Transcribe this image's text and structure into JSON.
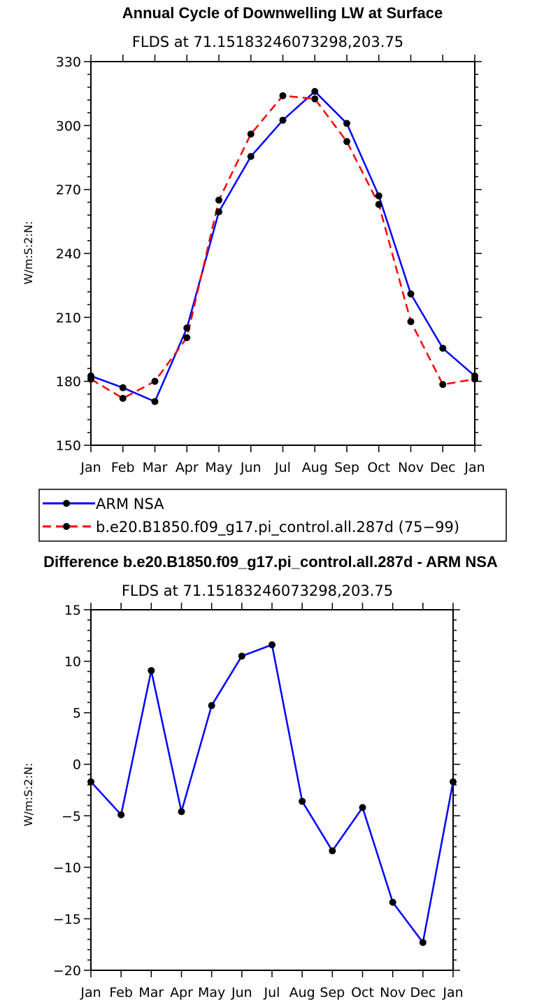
{
  "chart_data": [
    {
      "type": "line",
      "title": "Annual Cycle of Downwelling LW at Surface",
      "subtitle": "FLDS at 71.15183246073298,203.75",
      "xlabel": "",
      "ylabel": "W/m:S:2:N:",
      "categories": [
        "Jan",
        "Feb",
        "Mar",
        "Apr",
        "May",
        "Jun",
        "Jul",
        "Aug",
        "Sep",
        "Oct",
        "Nov",
        "Dec",
        "Jan"
      ],
      "ylim": [
        150,
        330
      ],
      "yticks": [
        150,
        180,
        210,
        240,
        270,
        300,
        330
      ],
      "series": [
        {
          "name": "ARM NSA",
          "color": "#0000ff",
          "dash": "solid",
          "values": [
            182.5,
            177,
            170.5,
            205,
            259.5,
            285.5,
            302.5,
            316,
            301,
            267,
            221,
            195.5,
            182.5
          ]
        },
        {
          "name": "b.e20.B1850.f09_g17.pi_control.all.287d (75−99)",
          "color": "#ff0000",
          "dash": "dashed",
          "values": [
            181,
            172,
            180,
            200.5,
            265,
            296,
            314,
            312.5,
            292.5,
            263,
            208,
            178.5,
            181
          ]
        }
      ]
    },
    {
      "type": "line",
      "title": "Difference b.e20.B1850.f09_g17.pi_control.all.287d - ARM NSA",
      "subtitle": "FLDS at 71.15183246073298,203.75",
      "xlabel": "",
      "ylabel": "W/m:S:2:N:",
      "categories": [
        "Jan",
        "Feb",
        "Mar",
        "Apr",
        "May",
        "Jun",
        "Jul",
        "Aug",
        "Sep",
        "Oct",
        "Nov",
        "Dec",
        "Jan"
      ],
      "ylim": [
        -20,
        15
      ],
      "yticks": [
        -20,
        -15,
        -10,
        -5,
        0,
        5,
        10,
        15
      ],
      "series": [
        {
          "color": "#0000ff",
          "dash": "solid",
          "values": [
            -1.7,
            -4.9,
            9.1,
            -4.6,
            5.7,
            10.5,
            11.6,
            -3.6,
            -8.4,
            -4.2,
            -13.4,
            -17.3,
            -1.7
          ]
        }
      ]
    }
  ]
}
